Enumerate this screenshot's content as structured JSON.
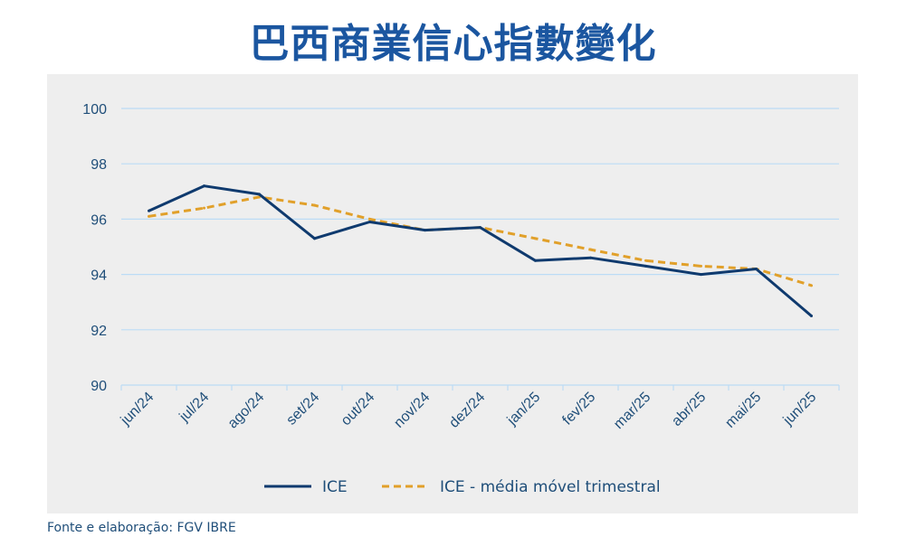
{
  "title": "巴西商業信心指數變化",
  "source": "Fonte e elaboração: FGV IBRE",
  "colors": {
    "ice": "#0f3a6e",
    "moving_average": "#e1a02a",
    "axis_text": "#1f4e79",
    "grid": "#bcdcf5",
    "title": "#1b56a0",
    "panel": "#eeeeee"
  },
  "chart_data": {
    "type": "line",
    "title": "巴西商業信心指數變化",
    "xlabel": "",
    "ylabel": "",
    "categories": [
      "jun/24",
      "jul/24",
      "ago/24",
      "set/24",
      "out/24",
      "nov/24",
      "dez/24",
      "jan/25",
      "fev/25",
      "mar/25",
      "abr/25",
      "mai/25",
      "jun/25"
    ],
    "ylim": [
      90,
      100
    ],
    "yticks": [
      90,
      92,
      94,
      96,
      98,
      100
    ],
    "grid": true,
    "legend_position": "bottom",
    "series": [
      {
        "name": "ICE",
        "style": "solid",
        "values": [
          96.3,
          97.2,
          96.9,
          95.3,
          95.9,
          95.6,
          95.7,
          94.5,
          94.6,
          94.3,
          94.0,
          94.2,
          92.5
        ]
      },
      {
        "name": "ICE - média móvel trimestral",
        "style": "dashed",
        "values": [
          96.1,
          96.4,
          96.8,
          96.5,
          96.0,
          95.6,
          95.7,
          95.3,
          94.9,
          94.5,
          94.3,
          94.2,
          93.6
        ]
      }
    ]
  }
}
